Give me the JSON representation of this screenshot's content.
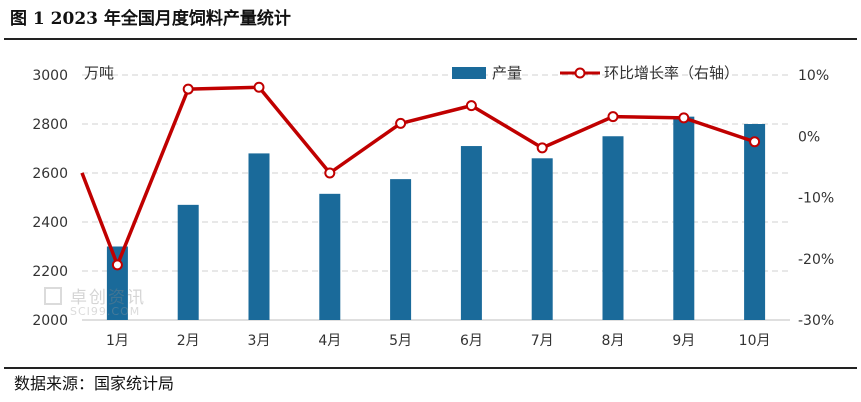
{
  "header": {
    "title": "图 1 2023 年全国月度饲料产量统计"
  },
  "footer": {
    "source": "数据来源：国家统计局"
  },
  "watermark": {
    "cn": "卓创资讯",
    "en": "SCI99.COM"
  },
  "chart_data": {
    "type": "bar",
    "categories": [
      "1月",
      "2月",
      "3月",
      "4月",
      "5月",
      "6月",
      "7月",
      "8月",
      "9月",
      "10月"
    ],
    "series": [
      {
        "name": "产量",
        "type": "bar",
        "axis": "left",
        "color": "#1a6a9a",
        "values": [
          2300,
          2470,
          2680,
          2515,
          2575,
          2710,
          2660,
          2750,
          2830,
          2800
        ]
      },
      {
        "name": "环比增长率（右轴）",
        "type": "line",
        "axis": "right",
        "color": "#c00000",
        "values": [
          -21,
          7.7,
          8.0,
          -6.0,
          2.1,
          5.0,
          -1.9,
          3.2,
          3.0,
          -0.9
        ],
        "unit": "%"
      }
    ],
    "left_axis": {
      "unit_label": "万吨",
      "ylim": [
        2000,
        3000
      ],
      "ticks": [
        "2000",
        "2200",
        "2400",
        "2600",
        "2800",
        "3000"
      ]
    },
    "right_axis": {
      "ylim": [
        -30,
        10
      ],
      "ticks": [
        "-30%",
        "-20%",
        "-10%",
        "0%",
        "10%"
      ]
    },
    "grid": true,
    "legend": "top-right"
  }
}
